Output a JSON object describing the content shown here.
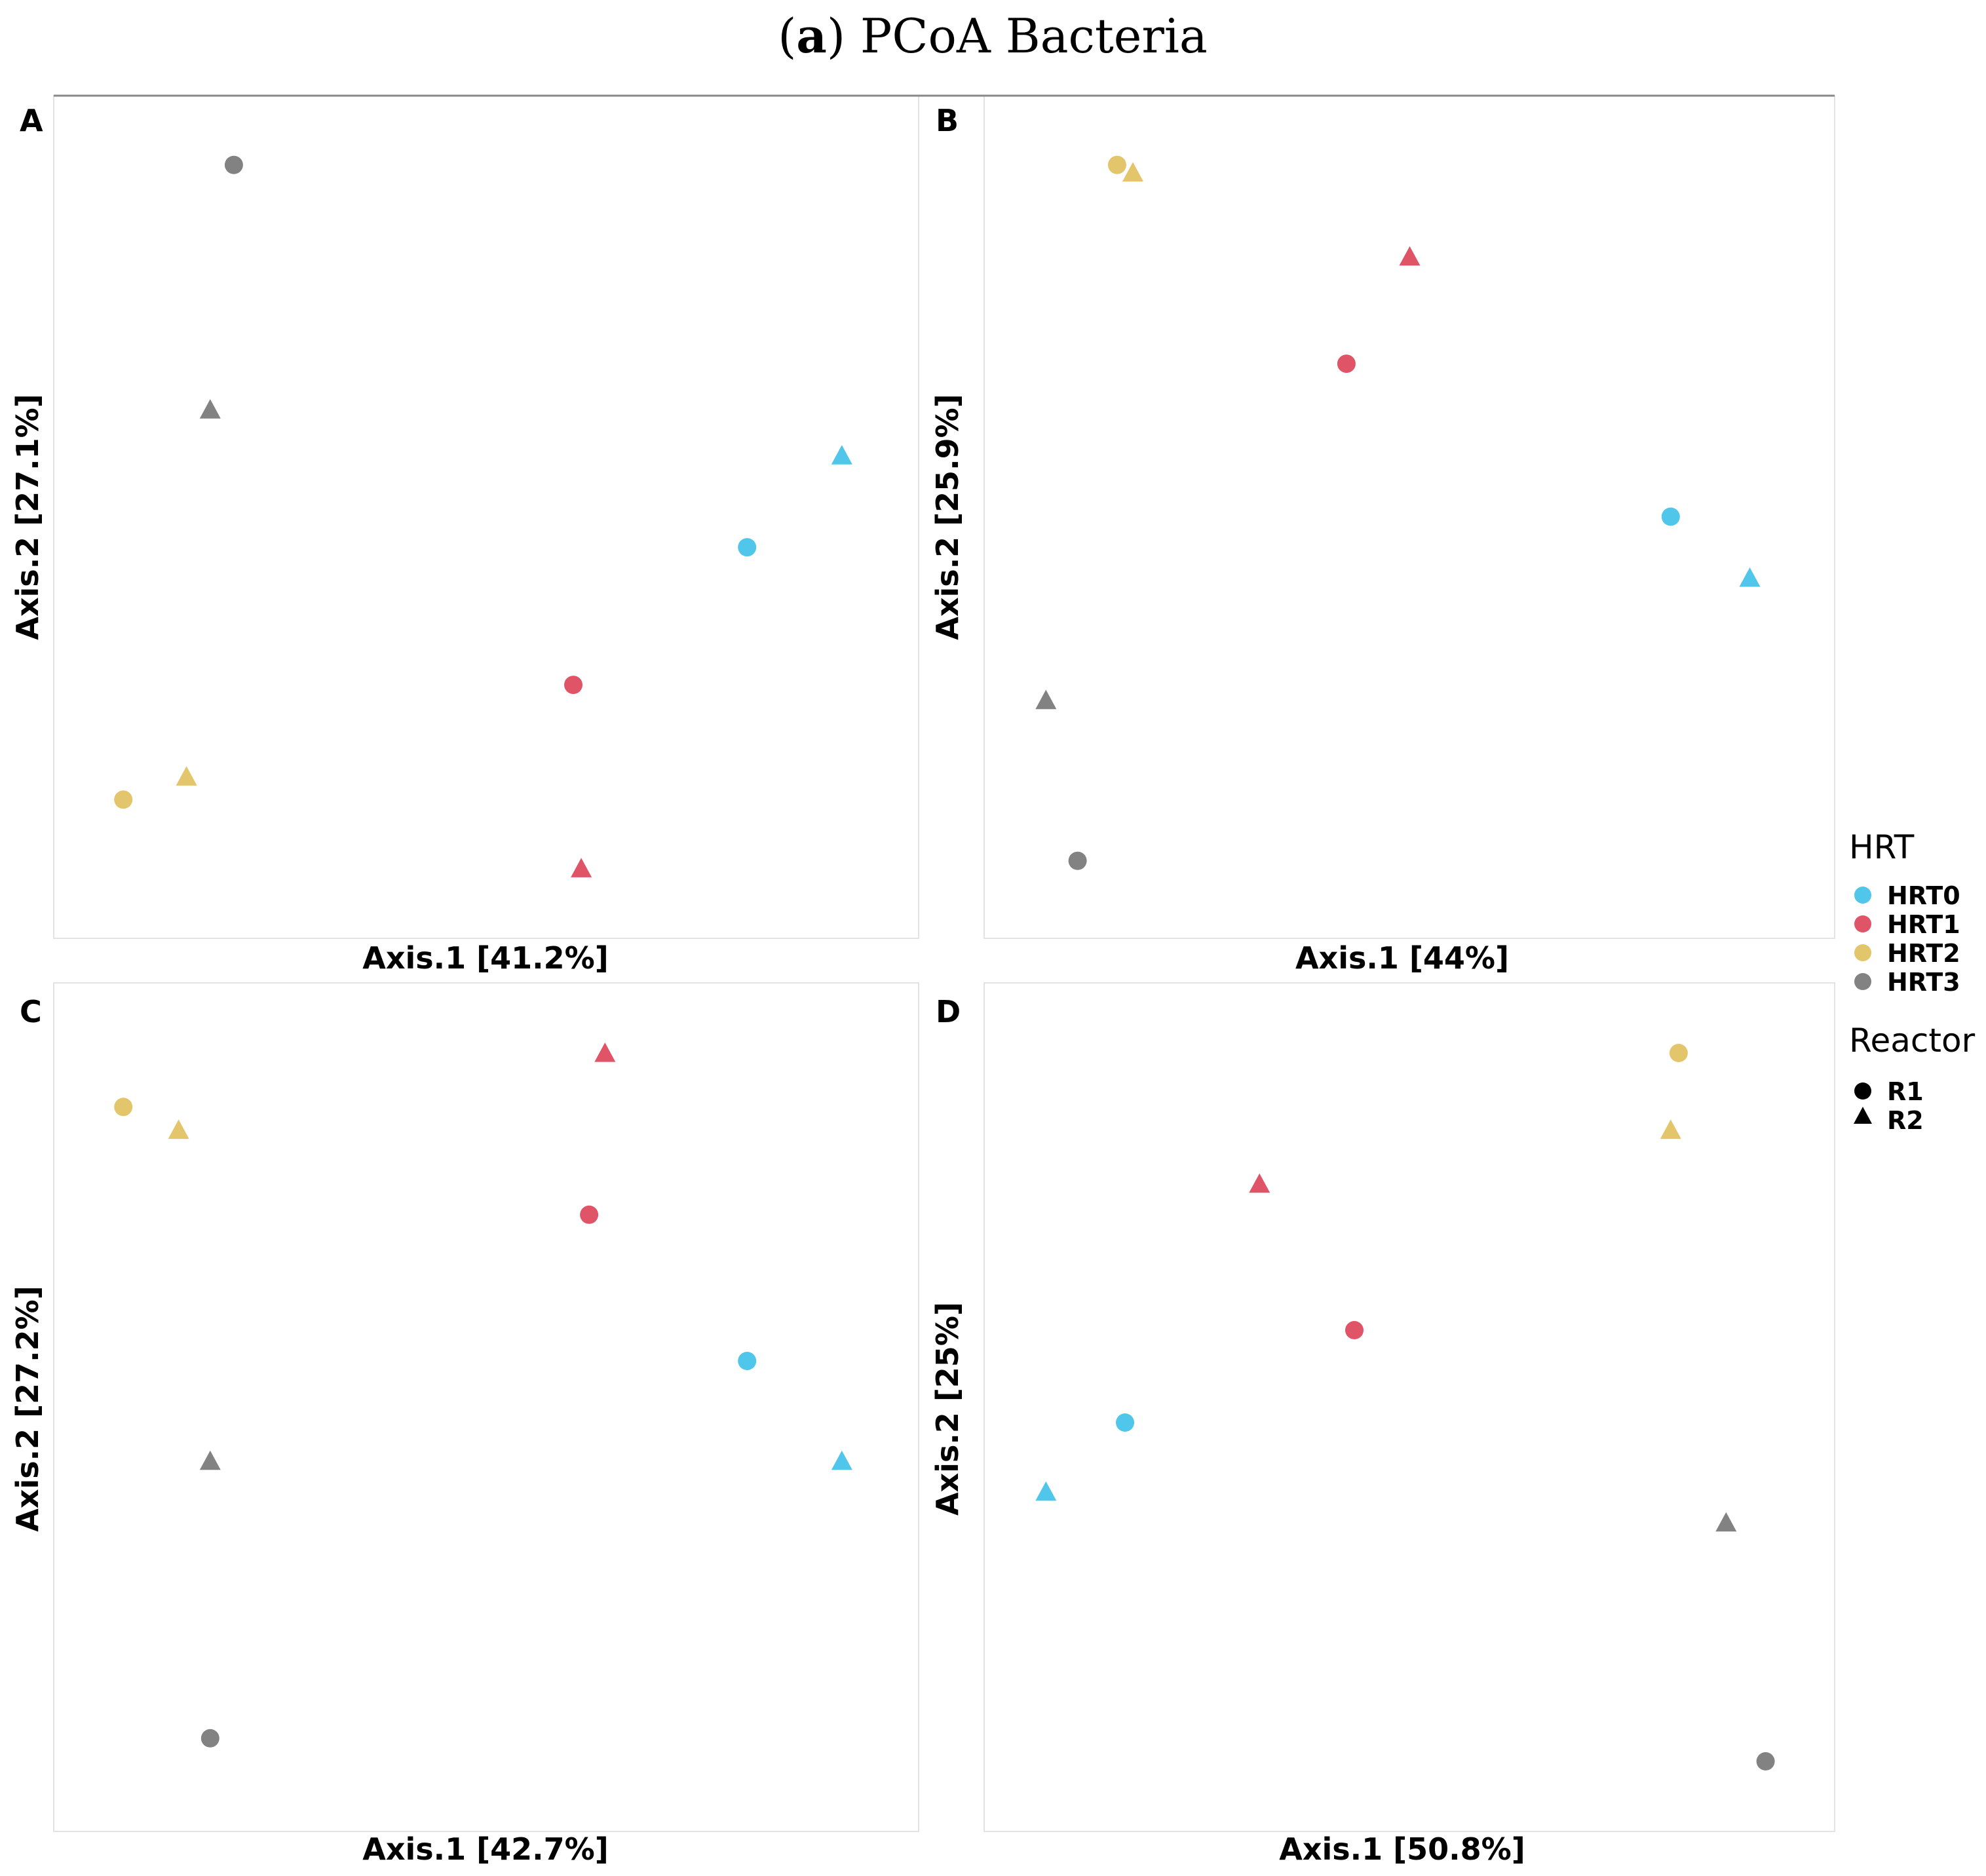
{
  "figure_title": {
    "prefix": "(",
    "letter": "a",
    "rest": ") PCoA Bacteria"
  },
  "colors": {
    "HRT0": "#4fc6ea",
    "HRT1": "#e05467",
    "HRT2": "#e3c56b",
    "HRT3": "#828282"
  },
  "legend": {
    "hrt_title": "HRT",
    "hrt_items": [
      {
        "label": "HRT0",
        "key": "HRT0"
      },
      {
        "label": "HRT1",
        "key": "HRT1"
      },
      {
        "label": "HRT2",
        "key": "HRT2"
      },
      {
        "label": "HRT3",
        "key": "HRT3"
      }
    ],
    "reactor_title": "Reactor",
    "reactor_items": [
      {
        "label": "R1",
        "shape": "circle"
      },
      {
        "label": "R2",
        "shape": "triangle"
      }
    ]
  },
  "chart_data": [
    {
      "type": "scatter",
      "panel": "A",
      "xlabel": "Axis.1   [41.2%]",
      "ylabel": "Axis.2   [27.1%]",
      "xlim": [
        0,
        100
      ],
      "ylim": [
        0,
        100
      ],
      "points": [
        {
          "group": "HRT3",
          "reactor": "R1",
          "x": 18,
          "y": 96
        },
        {
          "group": "HRT3",
          "reactor": "R2",
          "x": 15,
          "y": 64
        },
        {
          "group": "HRT0",
          "reactor": "R2",
          "x": 95,
          "y": 58
        },
        {
          "group": "HRT0",
          "reactor": "R1",
          "x": 83,
          "y": 46
        },
        {
          "group": "HRT1",
          "reactor": "R1",
          "x": 61,
          "y": 28
        },
        {
          "group": "HRT2",
          "reactor": "R2",
          "x": 12,
          "y": 16
        },
        {
          "group": "HRT2",
          "reactor": "R1",
          "x": 4,
          "y": 13
        },
        {
          "group": "HRT1",
          "reactor": "R2",
          "x": 62,
          "y": 4
        }
      ]
    },
    {
      "type": "scatter",
      "panel": "B",
      "xlabel": "Axis.1   [44%]",
      "ylabel": "Axis.2   [25.9%]",
      "xlim": [
        0,
        100
      ],
      "ylim": [
        0,
        100
      ],
      "points": [
        {
          "group": "HRT2",
          "reactor": "R1",
          "x": 13,
          "y": 96
        },
        {
          "group": "HRT2",
          "reactor": "R2",
          "x": 15,
          "y": 95
        },
        {
          "group": "HRT1",
          "reactor": "R2",
          "x": 50,
          "y": 84
        },
        {
          "group": "HRT1",
          "reactor": "R1",
          "x": 42,
          "y": 70
        },
        {
          "group": "HRT0",
          "reactor": "R1",
          "x": 83,
          "y": 50
        },
        {
          "group": "HRT0",
          "reactor": "R2",
          "x": 93,
          "y": 42
        },
        {
          "group": "HRT3",
          "reactor": "R2",
          "x": 4,
          "y": 26
        },
        {
          "group": "HRT3",
          "reactor": "R1",
          "x": 8,
          "y": 5
        }
      ]
    },
    {
      "type": "scatter",
      "panel": "C",
      "xlabel": "Axis.1   [42.7%]",
      "ylabel": "Axis.2   [27.2%]",
      "xlim": [
        0,
        100
      ],
      "ylim": [
        0,
        100
      ],
      "points": [
        {
          "group": "HRT1",
          "reactor": "R2",
          "x": 65,
          "y": 96
        },
        {
          "group": "HRT2",
          "reactor": "R1",
          "x": 4,
          "y": 89
        },
        {
          "group": "HRT2",
          "reactor": "R2",
          "x": 11,
          "y": 86
        },
        {
          "group": "HRT1",
          "reactor": "R1",
          "x": 63,
          "y": 75
        },
        {
          "group": "HRT0",
          "reactor": "R1",
          "x": 83,
          "y": 56
        },
        {
          "group": "HRT3",
          "reactor": "R2",
          "x": 15,
          "y": 43
        },
        {
          "group": "HRT0",
          "reactor": "R2",
          "x": 95,
          "y": 43
        },
        {
          "group": "HRT3",
          "reactor": "R1",
          "x": 15,
          "y": 7
        }
      ]
    },
    {
      "type": "scatter",
      "panel": "D",
      "xlabel": "Axis.1   [50.8%]",
      "ylabel": "Axis.2   [25%]",
      "xlim": [
        0,
        100
      ],
      "ylim": [
        0,
        100
      ],
      "points": [
        {
          "group": "HRT2",
          "reactor": "R1",
          "x": 84,
          "y": 96
        },
        {
          "group": "HRT2",
          "reactor": "R2",
          "x": 83,
          "y": 86
        },
        {
          "group": "HRT1",
          "reactor": "R2",
          "x": 31,
          "y": 79
        },
        {
          "group": "HRT1",
          "reactor": "R1",
          "x": 43,
          "y": 60
        },
        {
          "group": "HRT0",
          "reactor": "R1",
          "x": 14,
          "y": 48
        },
        {
          "group": "HRT0",
          "reactor": "R2",
          "x": 4,
          "y": 39
        },
        {
          "group": "HRT3",
          "reactor": "R2",
          "x": 90,
          "y": 35
        },
        {
          "group": "HRT3",
          "reactor": "R1",
          "x": 95,
          "y": 4
        }
      ]
    }
  ]
}
